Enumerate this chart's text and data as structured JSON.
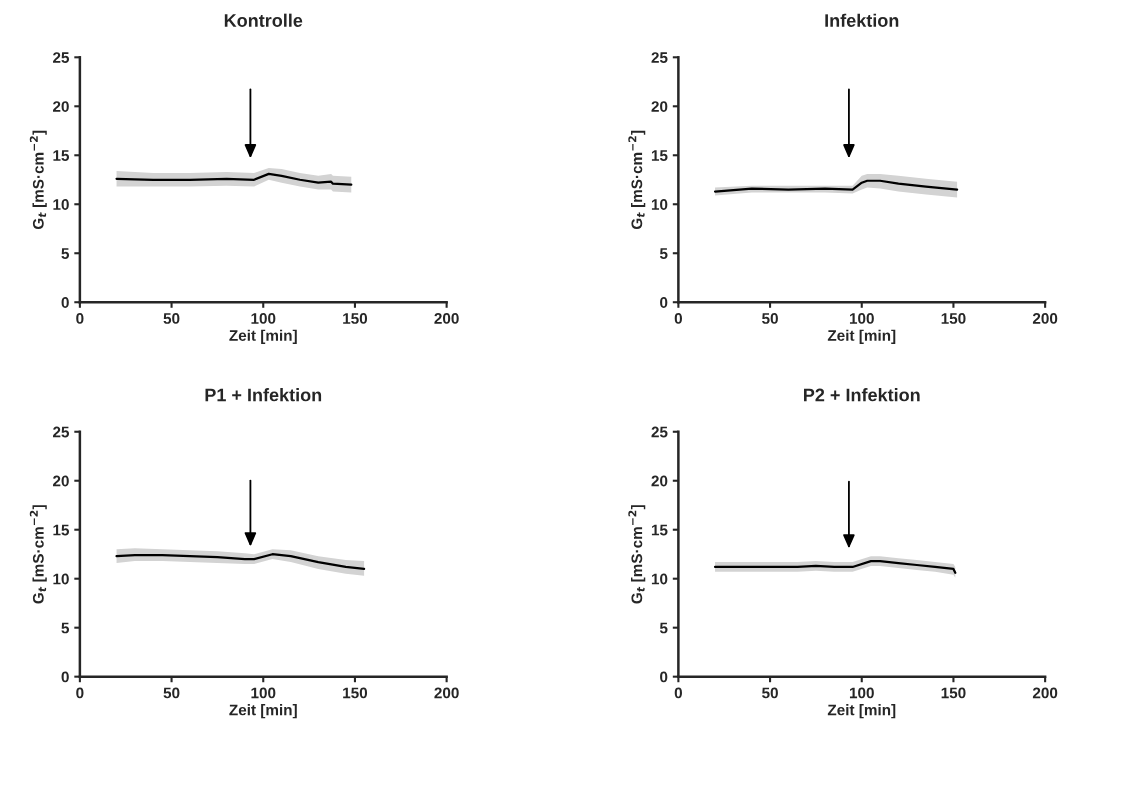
{
  "chart_data": [
    {
      "type": "line",
      "title": "Kontrolle",
      "xlabel": "Zeit [min]",
      "ylabel": "G$_{t}$ [mS·cm$^{−2}$]",
      "xlim": [
        0,
        200
      ],
      "xticks": [
        0,
        50,
        100,
        150,
        200
      ],
      "ylim": [
        0,
        25
      ],
      "yticks": [
        0,
        5,
        10,
        15,
        20,
        25
      ],
      "grid": false,
      "series": [
        {
          "color": "#000000",
          "x": [
            20,
            40,
            60,
            80,
            95,
            103,
            110,
            120,
            130,
            137,
            138,
            148
          ],
          "values": [
            12.6,
            12.5,
            12.5,
            12.6,
            12.5,
            13.1,
            12.9,
            12.5,
            12.2,
            12.3,
            12.1,
            12.0
          ],
          "lower": [
            11.8,
            11.8,
            11.8,
            11.9,
            11.8,
            12.5,
            12.2,
            11.8,
            11.5,
            11.5,
            11.3,
            11.2
          ],
          "upper": [
            13.4,
            13.2,
            13.2,
            13.3,
            13.2,
            13.7,
            13.6,
            13.2,
            12.9,
            13.1,
            12.9,
            12.8
          ]
        }
      ]
    },
    {
      "type": "line",
      "title": "Infektion",
      "xlabel": "Zeit [min]",
      "ylabel": "G$_{t}$ [mS·cm$^{−2}$]",
      "xlim": [
        0,
        200
      ],
      "xticks": [
        0,
        50,
        100,
        150,
        200
      ],
      "ylim": [
        0,
        25
      ],
      "yticks": [
        0,
        5,
        10,
        15,
        20,
        25
      ],
      "grid": false,
      "series": [
        {
          "color": "#000000",
          "x": [
            20,
            40,
            60,
            80,
            95,
            100,
            103,
            110,
            120,
            135,
            152
          ],
          "values": [
            11.3,
            11.6,
            11.5,
            11.6,
            11.5,
            12.2,
            12.4,
            12.4,
            12.1,
            11.8,
            11.5
          ],
          "lower": [
            10.9,
            11.2,
            11.2,
            11.2,
            11.1,
            11.5,
            11.7,
            11.6,
            11.3,
            11.0,
            10.7
          ],
          "upper": [
            11.7,
            11.9,
            11.9,
            11.9,
            11.9,
            12.9,
            13.1,
            13.1,
            12.9,
            12.6,
            12.3
          ]
        }
      ]
    },
    {
      "type": "line",
      "title": "P1 + Infektion",
      "xlabel": "Zeit [min]",
      "ylabel": "G$_{t}$ [mS·cm$^{−2}$]",
      "xlim": [
        0,
        200
      ],
      "xticks": [
        0,
        50,
        100,
        150,
        200
      ],
      "ylim": [
        0,
        25
      ],
      "yticks": [
        0,
        5,
        10,
        15,
        20,
        25
      ],
      "grid": false,
      "series": [
        {
          "color": "#000000",
          "x": [
            20,
            30,
            45,
            60,
            75,
            90,
            95,
            105,
            115,
            130,
            145,
            155
          ],
          "values": [
            12.3,
            12.4,
            12.4,
            12.3,
            12.2,
            12.0,
            12.0,
            12.5,
            12.3,
            11.7,
            11.2,
            11.0
          ],
          "lower": [
            11.6,
            11.8,
            11.8,
            11.7,
            11.6,
            11.5,
            11.5,
            12.0,
            11.7,
            11.0,
            10.5,
            10.3
          ],
          "upper": [
            13.0,
            13.1,
            13.0,
            12.9,
            12.8,
            12.6,
            12.5,
            13.0,
            12.9,
            12.3,
            11.9,
            11.8
          ]
        }
      ]
    },
    {
      "type": "line",
      "title": "P2 + Infektion",
      "xlabel": "Zeit [min]",
      "ylabel": "G$_{t}$ [mS·cm$^{−2}$]",
      "xlim": [
        0,
        200
      ],
      "xticks": [
        0,
        50,
        100,
        150,
        200
      ],
      "ylim": [
        0,
        25
      ],
      "yticks": [
        0,
        5,
        10,
        15,
        20,
        25
      ],
      "grid": false,
      "series": [
        {
          "color": "#000000",
          "x": [
            20,
            35,
            50,
            65,
            75,
            85,
            95,
            105,
            110,
            120,
            130,
            140,
            150,
            151
          ],
          "values": [
            11.2,
            11.2,
            11.2,
            11.2,
            11.3,
            11.2,
            11.2,
            11.8,
            11.8,
            11.6,
            11.4,
            11.2,
            11.0,
            10.6
          ],
          "lower": [
            10.7,
            10.7,
            10.7,
            10.7,
            10.8,
            10.7,
            10.7,
            11.3,
            11.3,
            11.1,
            10.9,
            10.7,
            10.4,
            10.1
          ],
          "upper": [
            11.7,
            11.7,
            11.7,
            11.7,
            11.8,
            11.7,
            11.7,
            12.3,
            12.3,
            12.1,
            11.9,
            11.7,
            11.5,
            11.2
          ]
        }
      ]
    }
  ]
}
